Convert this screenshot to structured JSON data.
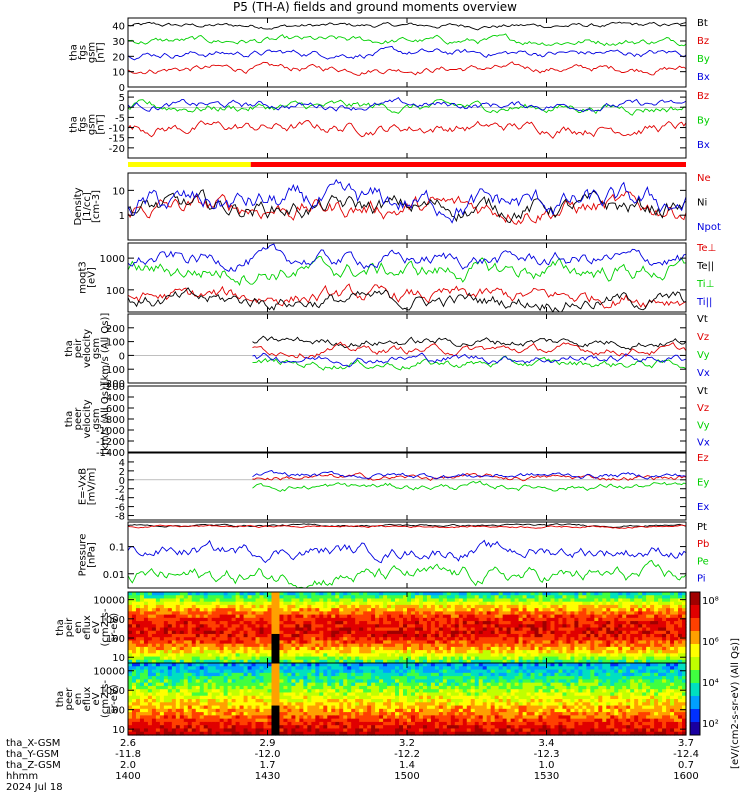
{
  "chart_data": {
    "type": "line",
    "title": "P5 (TH-A) fields and ground moments overview",
    "date_label": "2024 Jul 18",
    "x_axis": {
      "label": "hhmm",
      "ticks": [
        "1400",
        "1430",
        "1500",
        "1530",
        "1600"
      ],
      "range": [
        "1400",
        "1600"
      ]
    },
    "ephemeris": [
      {
        "label": "tha_X-GSM",
        "values": [
          "2.6",
          "2.9",
          "3.2",
          "3.4",
          "3.7"
        ]
      },
      {
        "label": "tha_Y-GSM",
        "values": [
          "-11.8",
          "-12.0",
          "-12.2",
          "-12.3",
          "-12.4"
        ]
      },
      {
        "label": "tha_Z-GSM",
        "values": [
          "2.0",
          "1.7",
          "1.4",
          "1.0",
          "0.7"
        ]
      }
    ],
    "panels": [
      {
        "id": "fgs-nt",
        "ylabel_lines": [
          "tha",
          "fgs",
          "gsm",
          "[nT]"
        ],
        "ylim": [
          0,
          45
        ],
        "yticks": [
          0,
          10,
          20,
          30,
          40
        ],
        "log": false,
        "series": [
          {
            "name": "Bt",
            "color": "#000000",
            "level": 40,
            "noise": 2.0
          },
          {
            "name": "Bz",
            "color": "#e00000",
            "level": 12,
            "noise": 3.0
          },
          {
            "name": "By",
            "color": "#00d000",
            "level": 30,
            "noise": 3.0
          },
          {
            "name": "Bx",
            "color": "#0000e0",
            "level": 22,
            "noise": 3.0
          }
        ]
      },
      {
        "id": "fgs-dsl",
        "ylabel_lines": [
          "tha",
          "fgs",
          "gsm",
          "[nT]"
        ],
        "ylim": [
          -25,
          8
        ],
        "yticks": [
          5,
          0,
          -5,
          -10,
          -15,
          -20
        ],
        "log": false,
        "series": [
          {
            "name": "Bz",
            "color": "#e00000",
            "level": -10,
            "noise": 3.5
          },
          {
            "name": "By",
            "color": "#00d000",
            "level": 0,
            "noise": 3.0
          },
          {
            "name": "Bx",
            "color": "#0000e0",
            "level": 1,
            "noise": 2.5
          }
        ]
      },
      {
        "id": "density",
        "ylabel_lines": [
          "Density",
          "[1/cc]",
          "[cm-3]"
        ],
        "ylim": [
          0.1,
          50
        ],
        "yticks": [
          1,
          10
        ],
        "log": true,
        "series": [
          {
            "name": "Ne",
            "color": "#e00000",
            "level": 2,
            "noise": 0.5
          },
          {
            "name": "Ni",
            "color": "#000000",
            "level": 2,
            "noise": 0.5
          },
          {
            "name": "Npot",
            "color": "#0000e0",
            "level": 3,
            "noise": 0.6
          }
        ]
      },
      {
        "id": "temperature",
        "ylabel_lines": [
          "moqt3",
          "[eV]"
        ],
        "ylim": [
          20,
          3000
        ],
        "yticks": [
          100,
          1000
        ],
        "log": true,
        "series": [
          {
            "name": "Te⊥",
            "color": "#e00000",
            "level": 60,
            "noise": 0.3
          },
          {
            "name": "Te||",
            "color": "#000000",
            "level": 45,
            "noise": 0.3
          },
          {
            "name": "Ti⊥",
            "color": "#00d000",
            "level": 400,
            "noise": 0.35
          },
          {
            "name": "Ti||",
            "color": "#0000e0",
            "level": 900,
            "noise": 0.3
          }
        ]
      },
      {
        "id": "peir-velocity",
        "ylabel_lines": [
          "tha",
          "peir",
          "velocity",
          "gsm",
          "[km/s (All Qs)]"
        ],
        "ylim": [
          -200,
          300
        ],
        "yticks": [
          -200,
          -100,
          0,
          100,
          200
        ],
        "log": false,
        "start_fraction": 0.22,
        "series": [
          {
            "name": "Vt",
            "color": "#000000",
            "level": 100,
            "noise": 40
          },
          {
            "name": "Vz",
            "color": "#e00000",
            "level": 40,
            "noise": 40
          },
          {
            "name": "Vy",
            "color": "#00d000",
            "level": -60,
            "noise": 40
          },
          {
            "name": "Vx",
            "color": "#0000e0",
            "level": -20,
            "noise": 40
          }
        ]
      },
      {
        "id": "peer-velocity",
        "ylabel_lines": [
          "tha",
          "peer",
          "velocity",
          "gsm",
          "[km/s (All Qs)]"
        ],
        "ylim": [
          -1400,
          -200
        ],
        "yticks": [
          -200,
          -400,
          -600,
          -800,
          -1000,
          -1200,
          -1400
        ],
        "log": false,
        "series": [
          {
            "name": "Vt",
            "color": "#000000",
            "level": null,
            "noise": 0
          },
          {
            "name": "Vz",
            "color": "#e00000",
            "level": null,
            "noise": 0
          },
          {
            "name": "Vy",
            "color": "#00d000",
            "level": null,
            "noise": 0
          },
          {
            "name": "Vx",
            "color": "#0000e0",
            "level": null,
            "noise": 0
          }
        ]
      },
      {
        "id": "efield",
        "ylabel_lines": [
          "E=-VxB",
          "[mV/m]"
        ],
        "ylim": [
          -9,
          6
        ],
        "yticks": [
          4,
          2,
          0,
          -2,
          -4,
          -6,
          -8
        ],
        "log": false,
        "start_fraction": 0.22,
        "series": [
          {
            "name": "Ez",
            "color": "#e00000",
            "level": 0.5,
            "noise": 0.8
          },
          {
            "name": "Ey",
            "color": "#00d000",
            "level": -1.5,
            "noise": 0.9
          },
          {
            "name": "Ex",
            "color": "#0000e0",
            "level": 1,
            "noise": 0.8
          }
        ]
      },
      {
        "id": "pressure",
        "ylabel_lines": [
          "Pressure",
          "[nPa]"
        ],
        "ylim": [
          0.003,
          0.8
        ],
        "yticks": [
          0.01,
          0.1
        ],
        "log": true,
        "series": [
          {
            "name": "Pt",
            "color": "#000000",
            "level": 0.6,
            "noise": 0.05
          },
          {
            "name": "Pb",
            "color": "#e00000",
            "level": 0.55,
            "noise": 0.05
          },
          {
            "name": "Pe",
            "color": "#00d000",
            "level": 0.008,
            "noise": 0.35
          },
          {
            "name": "Pi",
            "color": "#0000e0",
            "level": 0.07,
            "noise": 0.3
          }
        ]
      },
      {
        "id": "peir-spectrogram",
        "type": "heatmap",
        "ylabel_lines": [
          "tha",
          "peir",
          "en",
          "eflux",
          "eV",
          "(cm2-s-",
          "sr-eV)"
        ],
        "ylim": [
          5,
          25000
        ],
        "yticks": [
          10,
          100,
          1000,
          10000
        ],
        "log": true
      },
      {
        "id": "peer-spectrogram",
        "type": "heatmap",
        "ylabel_lines": [
          "tha",
          "peer",
          "en",
          "eflux",
          "eV",
          "(cm2-s-",
          "sr-eV)"
        ],
        "ylim": [
          5,
          25000
        ],
        "yticks": [
          10,
          100,
          1000,
          10000
        ],
        "log": true
      }
    ],
    "colorbar": {
      "label": "[eV/(cm2-s-sr-eV) (All Qs)]",
      "ticks": [
        "10²",
        "10⁴",
        "10⁶",
        "10⁸"
      ]
    },
    "mode_bar": {
      "yellow_until": 0.22,
      "colors": {
        "survey": "#ffff00",
        "fast": "#ff0000"
      }
    }
  }
}
